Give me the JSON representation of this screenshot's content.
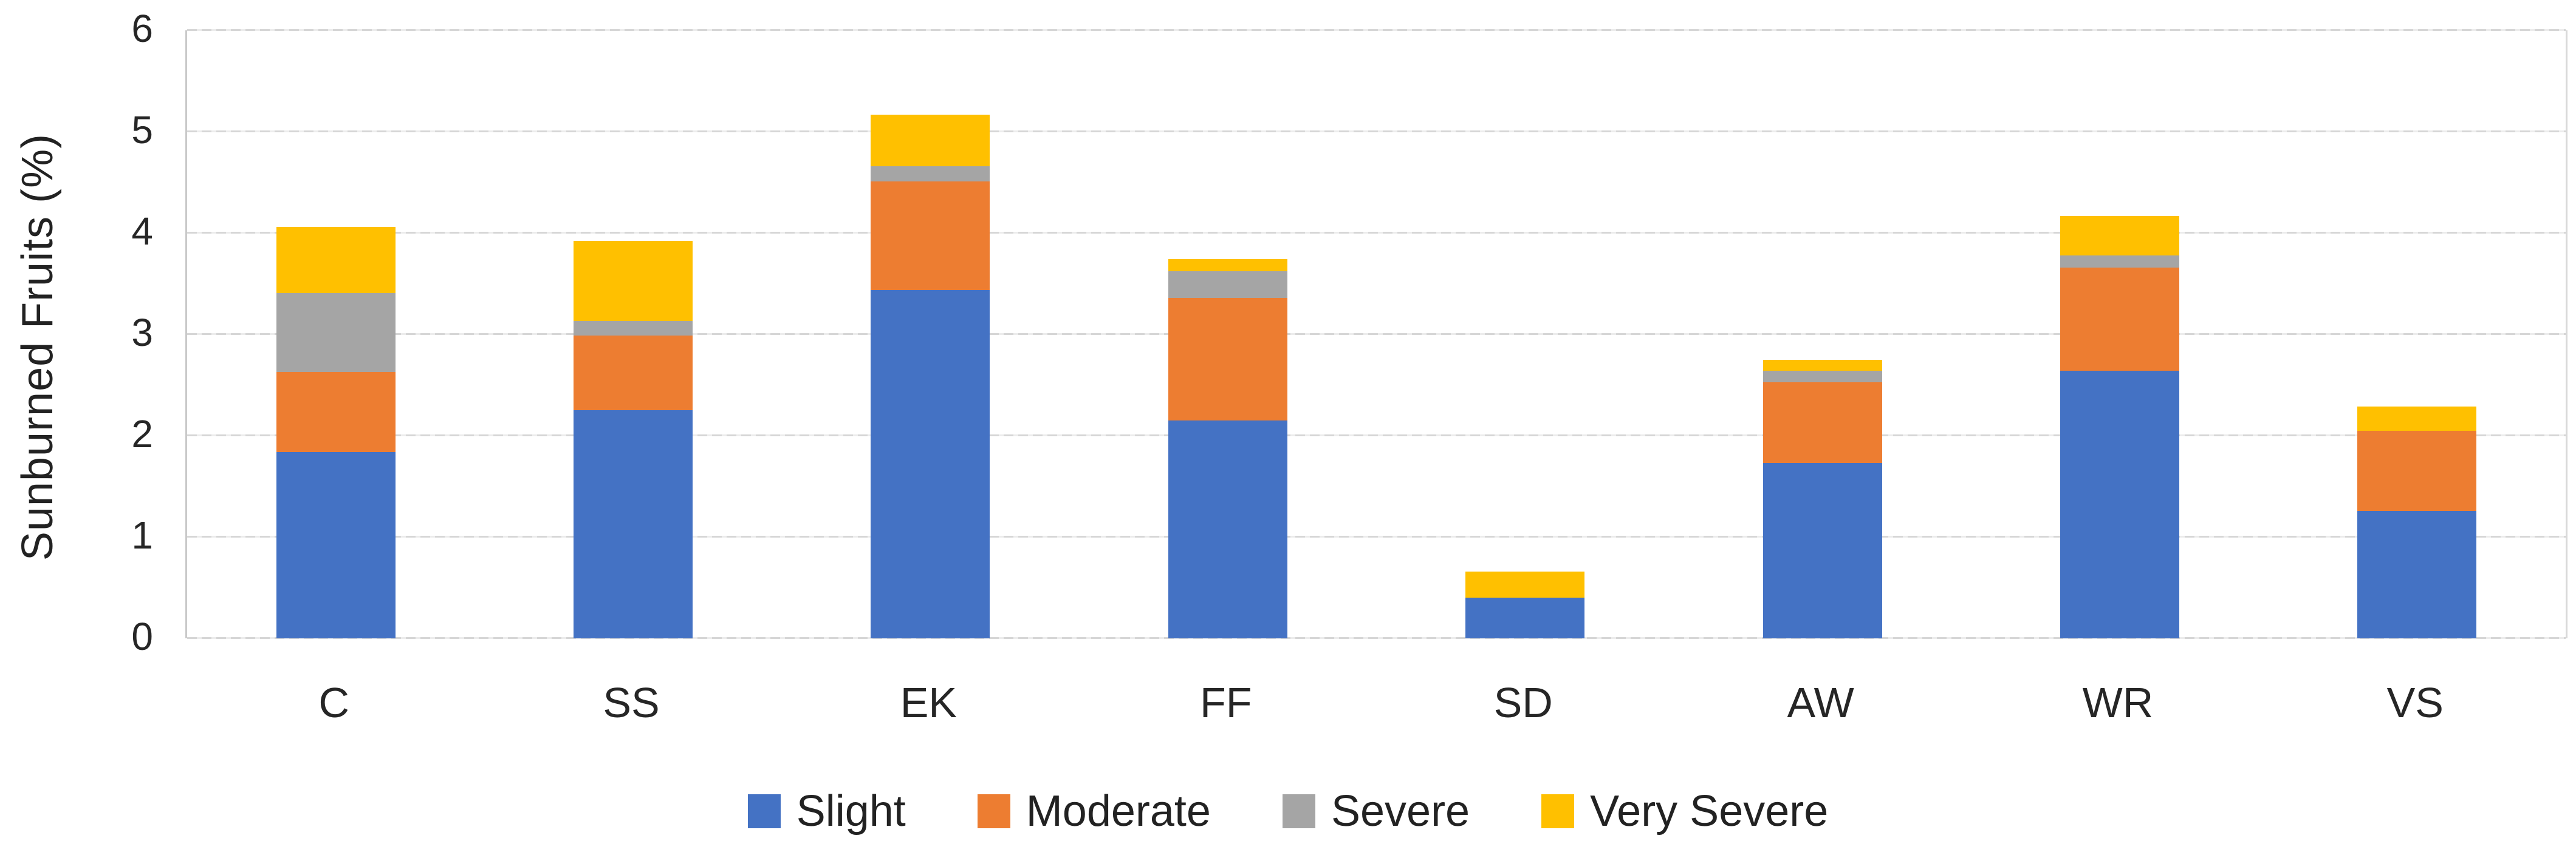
{
  "chart_data": {
    "type": "bar",
    "stacked": true,
    "title": "",
    "ylabel": "Sunburned Fruits (%)",
    "xlabel": "",
    "ylim": [
      0,
      6
    ],
    "yticks": [
      0,
      1,
      2,
      3,
      4,
      5,
      6
    ],
    "grid": true,
    "legend_position": "bottom",
    "categories": [
      "C",
      "SS",
      "EK",
      "FF",
      "SD",
      "AW",
      "WR",
      "VS"
    ],
    "series": [
      {
        "name": "Slight",
        "color": "#4472C4",
        "values": [
          1.84,
          2.25,
          3.44,
          2.15,
          0.4,
          1.73,
          2.64,
          1.26
        ]
      },
      {
        "name": "Moderate",
        "color": "#ED7D31",
        "values": [
          0.79,
          0.74,
          1.07,
          1.21,
          0.0,
          0.8,
          1.02,
          0.79
        ]
      },
      {
        "name": "Severe",
        "color": "#A5A5A5",
        "values": [
          0.78,
          0.14,
          0.15,
          0.26,
          0.0,
          0.11,
          0.12,
          0.0
        ]
      },
      {
        "name": "Very Severe",
        "color": "#FFC000",
        "values": [
          0.65,
          0.79,
          0.51,
          0.12,
          0.26,
          0.11,
          0.39,
          0.24
        ]
      }
    ],
    "colors": {
      "grid": "#D6D6D6",
      "axis": "#C9C9C9",
      "text": "#262626"
    }
  }
}
